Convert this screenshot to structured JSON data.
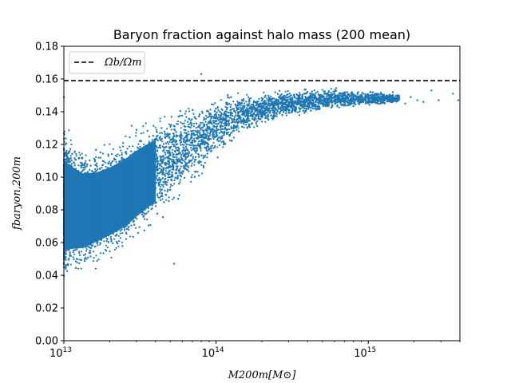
{
  "chart_data": {
    "type": "scatter",
    "title": "Baryon fraction against halo mass (200 mean)",
    "xlabel": "M200m[M⊙]",
    "ylabel": "fbaryon,200m",
    "x_scale": "log",
    "xlim": [
      10000000000000.0,
      4000000000000000.0
    ],
    "ylim": [
      0.0,
      0.18
    ],
    "xticks": [
      {
        "value": 10000000000000.0,
        "base": "10",
        "exp": "13"
      },
      {
        "value": 100000000000000.0,
        "base": "10",
        "exp": "14"
      },
      {
        "value": 1000000000000000.0,
        "base": "10",
        "exp": "15"
      }
    ],
    "yticks": [
      "0.00",
      "0.02",
      "0.04",
      "0.06",
      "0.08",
      "0.10",
      "0.12",
      "0.14",
      "0.16",
      "0.18"
    ],
    "grid": false,
    "legend_position": "top-left",
    "hline": {
      "name": "Ωb/Ωm",
      "y": 0.159,
      "style": "dashed",
      "color": "#000000"
    },
    "series": [
      {
        "color": "#1f77b4",
        "envelope": {
          "x": [
            10000000000000.0,
            13000000000000.0,
            16000000000000.0,
            20000000000000.0,
            25000000000000.0,
            30000000000000.0,
            40000000000000.0,
            50000000000000.0,
            60000000000000.0,
            80000000000000.0,
            100000000000000.0,
            130000000000000.0,
            160000000000000.0,
            200000000000000.0,
            250000000000000.0,
            300000000000000.0,
            400000000000000.0,
            500000000000000.0,
            600000000000000.0,
            800000000000000.0,
            1000000000000000.0,
            1300000000000000.0,
            1600000000000000.0
          ],
          "y_low": [
            0.034,
            0.038,
            0.043,
            0.048,
            0.053,
            0.06,
            0.07,
            0.079,
            0.087,
            0.1,
            0.111,
            0.12,
            0.126,
            0.131,
            0.134,
            0.136,
            0.138,
            0.14,
            0.141,
            0.142,
            0.143,
            0.144,
            0.145
          ],
          "y_high": [
            0.131,
            0.121,
            0.12,
            0.123,
            0.128,
            0.133,
            0.139,
            0.143,
            0.146,
            0.149,
            0.151,
            0.152,
            0.153,
            0.154,
            0.154,
            0.154,
            0.155,
            0.155,
            0.155,
            0.154,
            0.153,
            0.152,
            0.151
          ]
        },
        "outliers": [
          {
            "x": 10000000000000.0,
            "y": 0.149
          },
          {
            "x": 53000000000000.0,
            "y": 0.047
          },
          {
            "x": 80000000000000.0,
            "y": 0.163
          },
          {
            "x": 1450000000000000.0,
            "y": 0.152
          },
          {
            "x": 1600000000000000.0,
            "y": 0.148
          },
          {
            "x": 1750000000000000.0,
            "y": 0.145
          },
          {
            "x": 1900000000000000.0,
            "y": 0.149
          },
          {
            "x": 2100000000000000.0,
            "y": 0.147
          },
          {
            "x": 2300000000000000.0,
            "y": 0.146
          },
          {
            "x": 2600000000000000.0,
            "y": 0.153
          },
          {
            "x": 2900000000000000.0,
            "y": 0.147
          },
          {
            "x": 3600000000000000.0,
            "y": 0.151
          },
          {
            "x": 3900000000000000.0,
            "y": 0.147
          }
        ]
      }
    ]
  }
}
